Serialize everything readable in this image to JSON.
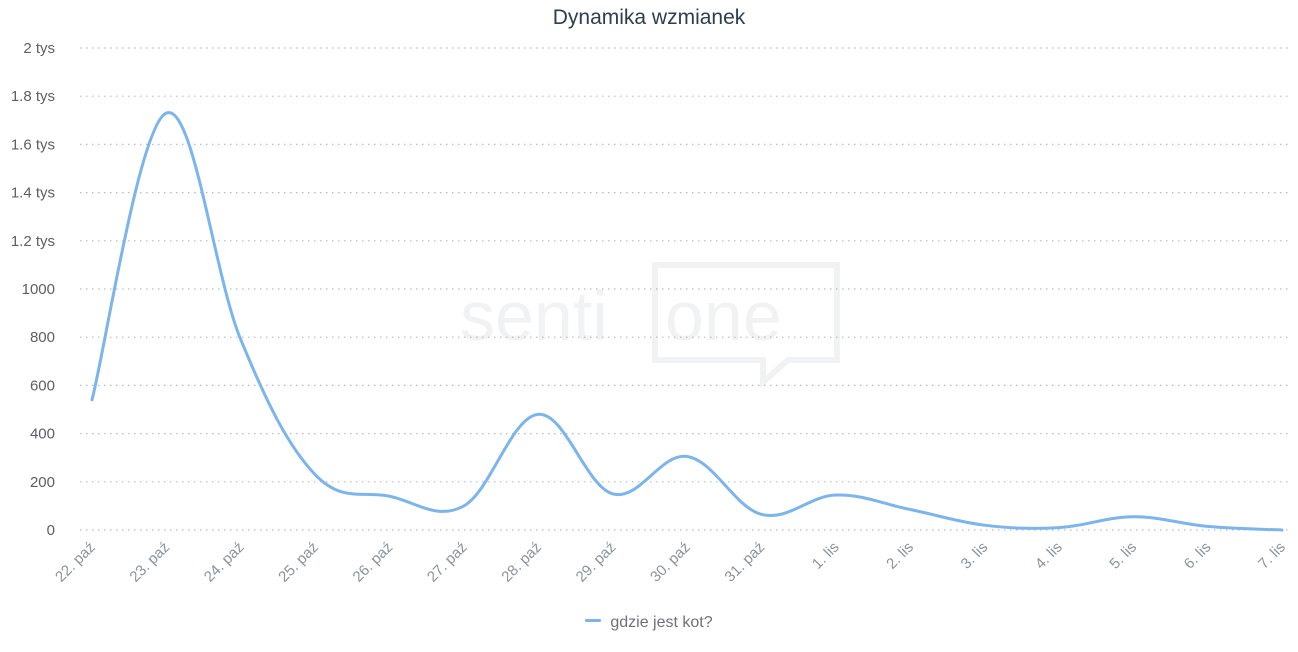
{
  "chart_data": {
    "type": "line",
    "title": "Dynamika wzmianek",
    "categories": [
      "22. paź",
      "23. paź",
      "24. paź",
      "25. paź",
      "26. paź",
      "27. paź",
      "28. paź",
      "29. paź",
      "30. paź",
      "31. paź",
      "1. lis",
      "2. lis",
      "3. lis",
      "4. lis",
      "5. lis",
      "6. lis",
      "7. lis"
    ],
    "series": [
      {
        "name": "gdzie jest kot?",
        "color": "#7cb5ec",
        "values": [
          540,
          1730,
          790,
          230,
          140,
          100,
          480,
          150,
          305,
          65,
          145,
          85,
          20,
          10,
          55,
          15,
          0
        ]
      }
    ],
    "ylim": [
      0,
      2000
    ],
    "yticks": [
      {
        "value": 0,
        "label": "0"
      },
      {
        "value": 200,
        "label": "200"
      },
      {
        "value": 400,
        "label": "400"
      },
      {
        "value": 600,
        "label": "600"
      },
      {
        "value": 800,
        "label": "800"
      },
      {
        "value": 1000,
        "label": "1000"
      },
      {
        "value": 1200,
        "label": "1.2 tys"
      },
      {
        "value": 1400,
        "label": "1.4 tys"
      },
      {
        "value": 1600,
        "label": "1.6 tys"
      },
      {
        "value": 1800,
        "label": "1.8 tys"
      },
      {
        "value": 2000,
        "label": "2 tys"
      }
    ],
    "grid": true,
    "legend_position": "bottom-center",
    "xlabel": "",
    "ylabel": ""
  },
  "watermark": {
    "text_left": "senti",
    "text_right": "one"
  }
}
